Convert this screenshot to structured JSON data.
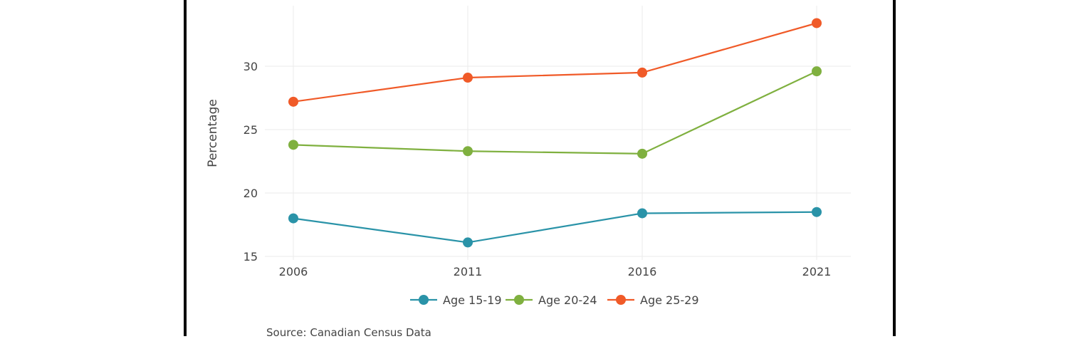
{
  "chart_data": {
    "type": "line",
    "title": "",
    "xlabel": "",
    "ylabel": "Percentage",
    "x": [
      "2006",
      "2011",
      "2016",
      "2021"
    ],
    "ylim": [
      14.5,
      34.8
    ],
    "yticks": [
      15,
      20,
      25,
      30
    ],
    "grid": true,
    "legend_position": "bottom",
    "series": [
      {
        "name": "Age 15-19",
        "color": "#2a93a8",
        "values": [
          18.0,
          16.1,
          18.4,
          18.5
        ]
      },
      {
        "name": "Age 20-24",
        "color": "#7fb03f",
        "values": [
          23.8,
          23.3,
          23.1,
          29.6
        ]
      },
      {
        "name": "Age 25-29",
        "color": "#f05a28",
        "values": [
          27.2,
          29.1,
          29.5,
          33.4
        ]
      }
    ]
  },
  "source_note": "Source: Canadian Census Data"
}
